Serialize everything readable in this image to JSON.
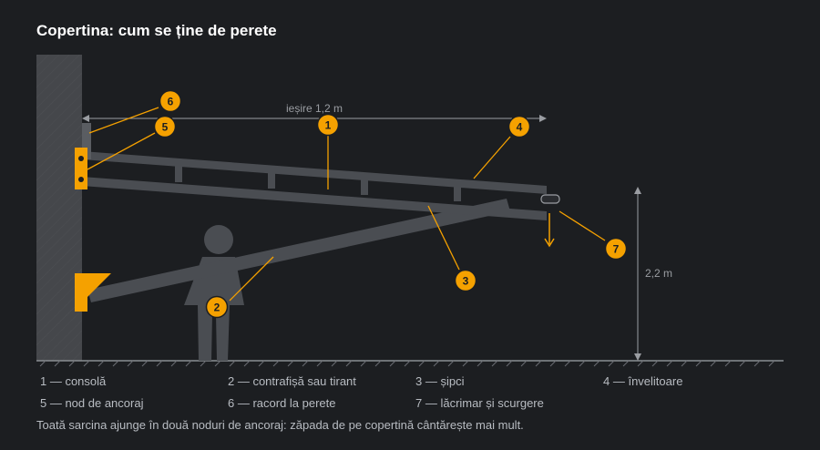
{
  "title": "Copertina: cum se ține de perete",
  "dimension_width": "ieșire 1,2 m",
  "dimension_height": "2,2 m",
  "markers": [
    "1",
    "2",
    "3",
    "4",
    "5",
    "6",
    "7"
  ],
  "legend": [
    {
      "num": "1",
      "text": "1 — consolă"
    },
    {
      "num": "2",
      "text": "2 — contrafișă sau tirant"
    },
    {
      "num": "3",
      "text": "3 — șipci"
    },
    {
      "num": "4",
      "text": "4 — învelitoare"
    },
    {
      "num": "5",
      "text": "5 — nod de ancoraj"
    },
    {
      "num": "6",
      "text": "6 — racord la perete"
    },
    {
      "num": "7",
      "text": "7 — lăcrimar și scurgere"
    }
  ],
  "note": "Toată sarcina ajunge în două noduri de ancoraj: zăpada de pe copertină cântărește mai mult.",
  "colors": {
    "accent": "#f5a100",
    "background": "#1c1e21",
    "structure": "#44474d",
    "wall": "#4a4c50",
    "dimension": "#9a9da2"
  }
}
